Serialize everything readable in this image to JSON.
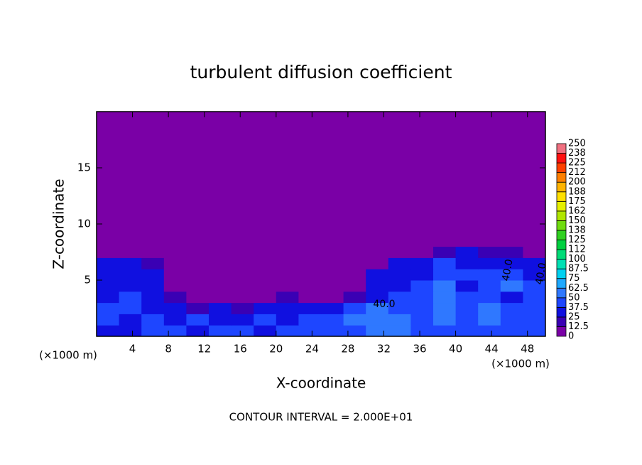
{
  "chart_data": {
    "type": "contour",
    "title": "turbulent diffusion coefficient",
    "x_label": "X-coordinate",
    "y_label": "Z-coordinate",
    "x_unit_label_left": "(×1000 m)",
    "x_unit_label_right": "(×1000 m)",
    "footnote": "CONTOUR INTERVAL = 2.000E+01",
    "contour_labels": [
      "40.0",
      "40.0",
      "40.0"
    ],
    "xlim": [
      0,
      50
    ],
    "ylim": [
      0,
      20
    ],
    "xticks": [
      4,
      8,
      12,
      16,
      20,
      24,
      28,
      32,
      36,
      40,
      44,
      48
    ],
    "yticks": [
      5,
      10,
      15
    ],
    "background_color": "#7a00a6",
    "x_edges": [
      0,
      2.5,
      5,
      7.5,
      10,
      12.5,
      15,
      17.5,
      20,
      22.5,
      25,
      27.5,
      30,
      32.5,
      35,
      37.5,
      40,
      42.5,
      45,
      47.5,
      50
    ],
    "z_edges": [
      0,
      1,
      2,
      3,
      4,
      5,
      6,
      7,
      8,
      9
    ],
    "z": [
      [
        35,
        30,
        38,
        40,
        35,
        38,
        40,
        35,
        38,
        42,
        40,
        45,
        50,
        55,
        45,
        40,
        42,
        38,
        45,
        40
      ],
      [
        38,
        35,
        40,
        30,
        38,
        35,
        30,
        38,
        35,
        40,
        45,
        55,
        60,
        50,
        40,
        60,
        45,
        55,
        40,
        45
      ],
      [
        40,
        38,
        35,
        25,
        20,
        30,
        20,
        25,
        30,
        25,
        30,
        40,
        50,
        45,
        45,
        55,
        40,
        50,
        45,
        40
      ],
      [
        35,
        40,
        30,
        15,
        10,
        10,
        5,
        10,
        15,
        5,
        10,
        20,
        35,
        40,
        40,
        50,
        40,
        45,
        35,
        40
      ],
      [
        30,
        35,
        25,
        5,
        0,
        0,
        0,
        0,
        0,
        0,
        0,
        5,
        35,
        35,
        40,
        55,
        35,
        45,
        50,
        40
      ],
      [
        35,
        30,
        30,
        5,
        0,
        0,
        0,
        0,
        0,
        0,
        0,
        0,
        30,
        35,
        35,
        45,
        40,
        40,
        45,
        35
      ],
      [
        30,
        25,
        15,
        0,
        0,
        0,
        0,
        0,
        0,
        0,
        0,
        0,
        10,
        25,
        30,
        40,
        35,
        30,
        35,
        30
      ],
      [
        5,
        5,
        0,
        0,
        0,
        0,
        0,
        0,
        0,
        0,
        0,
        0,
        0,
        5,
        10,
        20,
        25,
        15,
        15,
        10
      ],
      [
        0,
        0,
        0,
        0,
        0,
        0,
        0,
        0,
        0,
        0,
        0,
        0,
        0,
        0,
        0,
        5,
        10,
        0,
        0,
        0
      ]
    ],
    "levels": [
      0,
      12.5,
      25,
      37.5,
      50,
      62.5,
      75,
      87.5,
      100,
      112,
      125,
      138,
      150,
      162,
      175,
      188,
      200,
      212,
      225,
      238,
      250
    ],
    "colors": [
      "#7a00a6",
      "#3a00b4",
      "#1010e0",
      "#1e46ff",
      "#2f78ff",
      "#1ea8ff",
      "#00d0f0",
      "#00e0b4",
      "#00dc78",
      "#00d040",
      "#30d020",
      "#70dc10",
      "#b0e600",
      "#e6f000",
      "#ffe000",
      "#ffb400",
      "#ff8000",
      "#ff4000",
      "#ff1010",
      "#f07080"
    ]
  }
}
